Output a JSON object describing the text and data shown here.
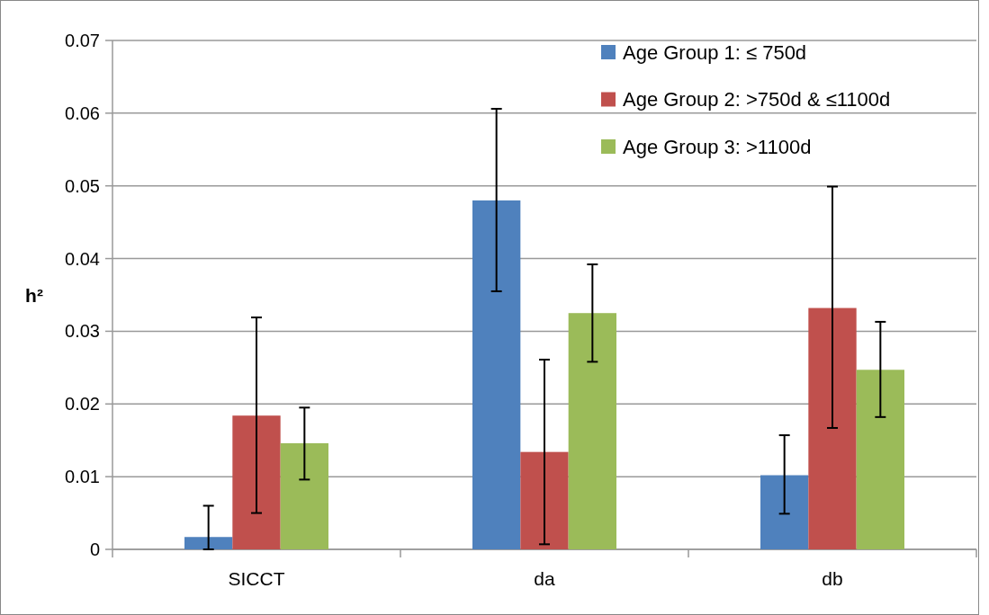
{
  "chart_data": {
    "type": "bar",
    "ylabel": "h²",
    "categories": [
      "SICCT",
      "da",
      "db"
    ],
    "series": [
      {
        "name": "Age Group 1: ≤ 750d",
        "color": "#4f81bd",
        "values": [
          0.0017,
          0.048,
          0.0102
        ],
        "errors": [
          [
            0.0,
            0.006
          ],
          [
            0.0355,
            0.0606
          ],
          [
            0.0049,
            0.0157
          ]
        ]
      },
      {
        "name": "Age Group 2: >750d & ≤1100d",
        "color": "#c0504d",
        "values": [
          0.0184,
          0.0134,
          0.0332
        ],
        "errors": [
          [
            0.005,
            0.0319
          ],
          [
            0.0007,
            0.0261
          ],
          [
            0.0167,
            0.0499
          ]
        ]
      },
      {
        "name": "Age Group 3: >1100d",
        "color": "#9bbb59",
        "values": [
          0.0146,
          0.0325,
          0.0247
        ],
        "errors": [
          [
            0.0096,
            0.0195
          ],
          [
            0.0258,
            0.0392
          ],
          [
            0.0182,
            0.0313
          ]
        ]
      }
    ],
    "ylim": [
      0,
      0.07
    ],
    "yticks": [
      {
        "value": 0,
        "label": "0"
      },
      0.01,
      0.02,
      0.03,
      0.04,
      0.05,
      0.06,
      0.07
    ],
    "grid": "y",
    "legend": "top right"
  }
}
